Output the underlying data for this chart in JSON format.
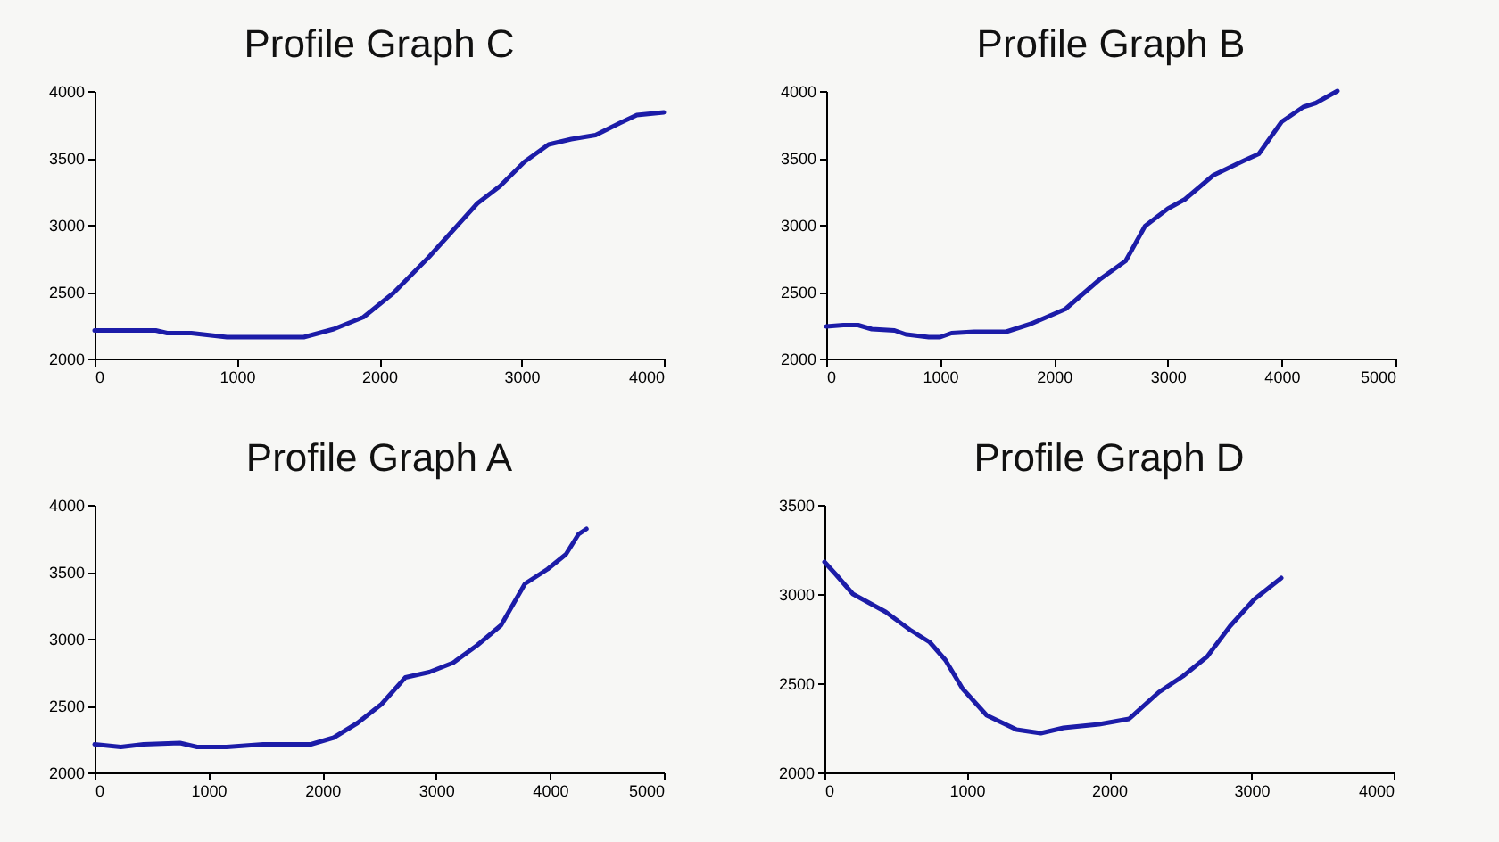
{
  "chart_data": [
    {
      "type": "line",
      "title": "Profile Graph C",
      "color": "#1c1ca8",
      "line_style": "solid",
      "grid": false,
      "x": [
        0,
        430,
        510,
        680,
        930,
        1470,
        1680,
        1890,
        2100,
        2350,
        2520,
        2690,
        2850,
        3020,
        3190,
        3350,
        3520,
        3690,
        3810,
        4000
      ],
      "values": [
        2210,
        2210,
        2190,
        2190,
        2160,
        2160,
        2220,
        2310,
        2490,
        2760,
        2960,
        3160,
        3290,
        3470,
        3600,
        3640,
        3670,
        3760,
        3820,
        3840
      ],
      "xlim": [
        0,
        4000
      ],
      "ylim": [
        2000,
        4000
      ],
      "xticks": [
        0,
        1000,
        2000,
        3000,
        4000
      ],
      "yticks": [
        2000,
        2500,
        3000,
        3500,
        4000
      ]
    },
    {
      "type": "line",
      "title": "Profile Graph B",
      "color": "#1c1ca8",
      "line_style": "solid",
      "grid": false,
      "x": [
        0,
        150,
        280,
        400,
        600,
        700,
        900,
        1000,
        1100,
        1300,
        1580,
        1800,
        2100,
        2400,
        2630,
        2800,
        3000,
        3150,
        3400,
        3670,
        3800,
        4000,
        4190,
        4300,
        4490
      ],
      "values": [
        2240,
        2250,
        2250,
        2220,
        2210,
        2180,
        2160,
        2160,
        2190,
        2200,
        2200,
        2260,
        2370,
        2590,
        2730,
        2990,
        3120,
        3190,
        3370,
        3480,
        3530,
        3770,
        3880,
        3910,
        4000
      ],
      "xlim": [
        0,
        5000
      ],
      "ylim": [
        2000,
        4000
      ],
      "xticks": [
        0,
        1000,
        2000,
        3000,
        4000,
        5000
      ],
      "yticks": [
        2000,
        2500,
        3000,
        3500,
        4000
      ]
    },
    {
      "type": "line",
      "title": "Profile Graph A",
      "color": "#1c1ca8",
      "line_style": "solid",
      "grid": false,
      "x": [
        0,
        230,
        430,
        750,
        900,
        1160,
        1480,
        1900,
        2100,
        2310,
        2520,
        2730,
        2940,
        3150,
        3360,
        3570,
        3780,
        3980,
        4140,
        4250,
        4320
      ],
      "values": [
        2210,
        2190,
        2210,
        2220,
        2190,
        2190,
        2210,
        2210,
        2260,
        2370,
        2510,
        2710,
        2750,
        2820,
        2950,
        3100,
        3410,
        3520,
        3630,
        3780,
        3820
      ],
      "xlim": [
        0,
        5000
      ],
      "ylim": [
        2000,
        4000
      ],
      "xticks": [
        0,
        1000,
        2000,
        3000,
        4000,
        5000
      ],
      "yticks": [
        2000,
        2500,
        3000,
        3500,
        4000
      ]
    },
    {
      "type": "line",
      "title": "Profile Graph D",
      "color": "#1c1ca8",
      "line_style": "solid",
      "grid": false,
      "x": [
        0,
        80,
        200,
        430,
        600,
        740,
        850,
        970,
        1140,
        1350,
        1520,
        1680,
        1930,
        2140,
        2350,
        2520,
        2690,
        2850,
        3020,
        3210
      ],
      "values": [
        3180,
        3110,
        3000,
        2900,
        2800,
        2730,
        2630,
        2470,
        2320,
        2240,
        2220,
        2250,
        2270,
        2300,
        2450,
        2540,
        2650,
        2820,
        2970,
        3090
      ],
      "xlim": [
        0,
        4000
      ],
      "ylim": [
        2000,
        3500
      ],
      "xticks": [
        0,
        1000,
        2000,
        3000,
        4000
      ],
      "yticks": [
        2000,
        2500,
        3000,
        3500
      ]
    }
  ]
}
